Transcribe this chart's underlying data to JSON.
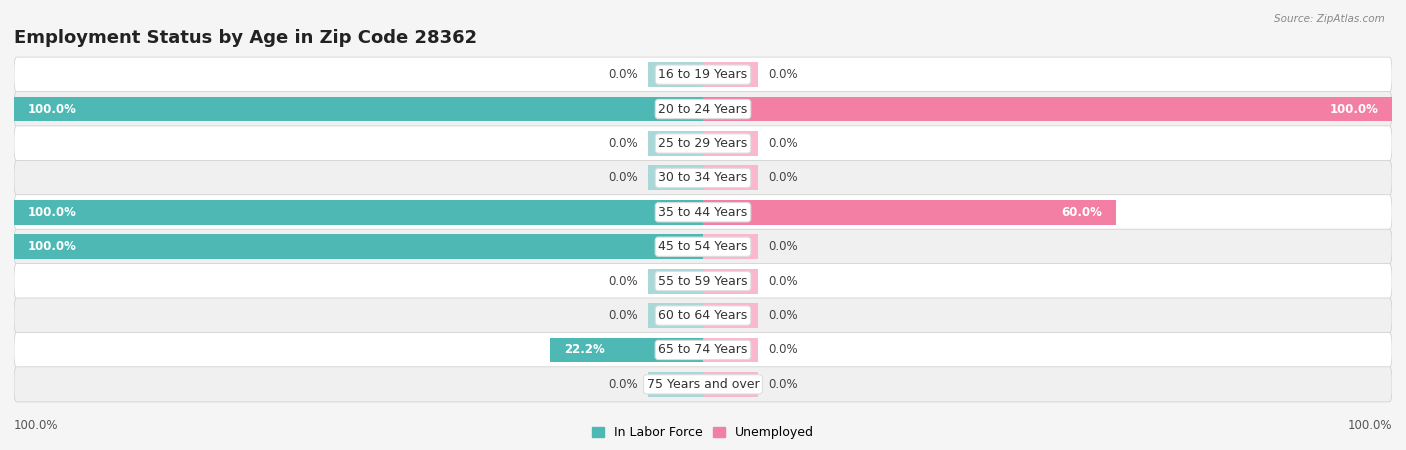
{
  "title": "Employment Status by Age in Zip Code 28362",
  "source": "Source: ZipAtlas.com",
  "age_groups": [
    "16 to 19 Years",
    "20 to 24 Years",
    "25 to 29 Years",
    "30 to 34 Years",
    "35 to 44 Years",
    "45 to 54 Years",
    "55 to 59 Years",
    "60 to 64 Years",
    "65 to 74 Years",
    "75 Years and over"
  ],
  "labor_force": [
    0.0,
    100.0,
    0.0,
    0.0,
    100.0,
    100.0,
    0.0,
    0.0,
    22.2,
    0.0
  ],
  "unemployed": [
    0.0,
    100.0,
    0.0,
    0.0,
    60.0,
    0.0,
    0.0,
    0.0,
    0.0,
    0.0
  ],
  "color_labor": "#4db8b4",
  "color_labor_stub": "#a8d8d8",
  "color_unemployed": "#f47fa4",
  "color_unemployed_stub": "#f9b8cb",
  "bar_height": 0.72,
  "stub_pct": 8,
  "xlim": 100,
  "title_fontsize": 13,
  "label_fontsize": 9,
  "bar_label_fontsize": 8.5,
  "legend_fontsize": 9,
  "bg_white": "#ffffff",
  "bg_light": "#f0f0f0",
  "fig_bg": "#f5f5f5"
}
